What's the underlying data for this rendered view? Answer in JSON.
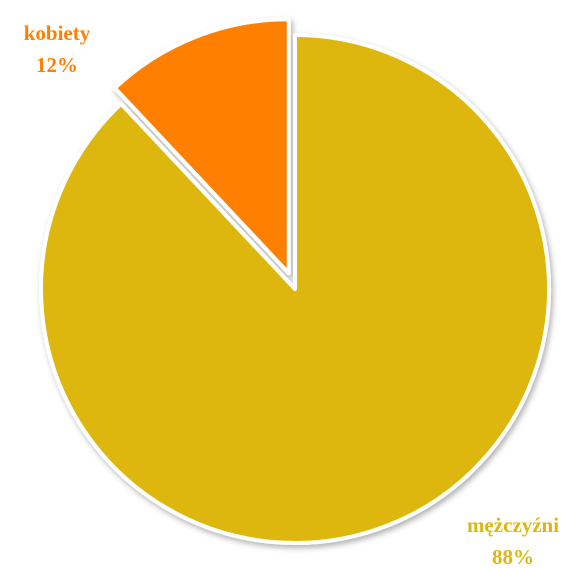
{
  "chart_data": {
    "type": "pie",
    "categories": [
      "mężczyźni",
      "kobiety"
    ],
    "values": [
      88,
      12
    ],
    "value_labels": [
      "88%",
      "12%"
    ],
    "colors": [
      "#ddb70e",
      "#ff7f00"
    ]
  }
}
